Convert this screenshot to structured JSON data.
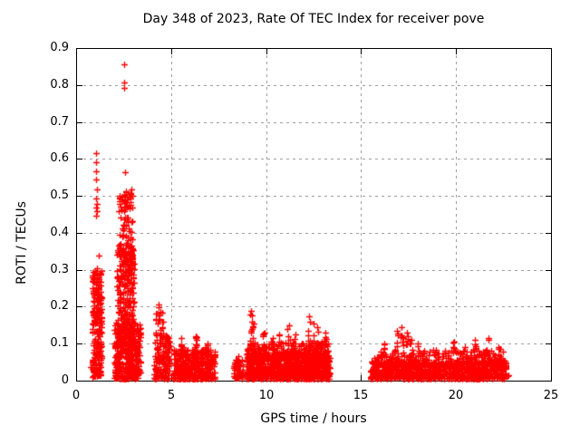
{
  "window": {
    "background": "#ffffff"
  },
  "chart_data": {
    "type": "scatter",
    "title": "Day 348 of 2023, Rate Of TEC Index for receiver pove",
    "xlabel": "GPS time / hours",
    "ylabel": "ROTI / TECUs",
    "xlim": [
      0,
      25
    ],
    "ylim": [
      0,
      0.9
    ],
    "x_ticks": [
      {
        "v": 0,
        "label": "0"
      },
      {
        "v": 5,
        "label": "5"
      },
      {
        "v": 10,
        "label": "10"
      },
      {
        "v": 15,
        "label": "15"
      },
      {
        "v": 20,
        "label": "20"
      },
      {
        "v": 25,
        "label": "25"
      }
    ],
    "y_ticks": [
      {
        "v": 0,
        "label": "0"
      },
      {
        "v": 0.1,
        "label": "0.1"
      },
      {
        "v": 0.2,
        "label": "0.2"
      },
      {
        "v": 0.3,
        "label": "0.3"
      },
      {
        "v": 0.4,
        "label": "0.4"
      },
      {
        "v": 0.5,
        "label": "0.5"
      },
      {
        "v": 0.6,
        "label": "0.6"
      },
      {
        "v": 0.7,
        "label": "0.7"
      },
      {
        "v": 0.8,
        "label": "0.8"
      },
      {
        "v": 0.9,
        "label": "0.9"
      }
    ],
    "grid": true,
    "grid_color": "#a0a0a0",
    "axis_color": "#000000",
    "legend": false,
    "marker": "plus",
    "marker_color": "#ff0000",
    "series_name": "ROTI",
    "clusters": [
      {
        "x0": 0.85,
        "x1": 1.35,
        "ymin": 0.01,
        "ymax": 0.3,
        "count": 260,
        "bias": 1.25
      },
      {
        "x0": 2.0,
        "x1": 3.4,
        "ymin": 0.005,
        "ymax": 0.16,
        "count": 380,
        "bias": 1.2
      },
      {
        "x0": 2.15,
        "x1": 3.05,
        "ymin": 0.1,
        "ymax": 0.36,
        "count": 250,
        "bias": 1.1
      },
      {
        "x0": 2.25,
        "x1": 2.98,
        "ymin": 0.3,
        "ymax": 0.52,
        "count": 120,
        "bias": 1.15
      },
      {
        "x0": 4.1,
        "x1": 4.95,
        "ymin": 0.005,
        "ymax": 0.13,
        "count": 150,
        "bias": 1.4
      },
      {
        "x0": 4.2,
        "x1": 4.65,
        "ymin": 0.12,
        "ymax": 0.2,
        "count": 18,
        "bias": 1.0
      },
      {
        "x0": 5.1,
        "x1": 7.3,
        "ymin": 0.005,
        "ymax": 0.085,
        "count": 430,
        "bias": 1.5
      },
      {
        "x0": 8.3,
        "x1": 8.8,
        "ymin": 0.005,
        "ymax": 0.058,
        "count": 60,
        "bias": 1.3
      },
      {
        "x0": 8.95,
        "x1": 10.1,
        "ymin": 0.005,
        "ymax": 0.075,
        "count": 260,
        "bias": 1.35
      },
      {
        "x0": 10.18,
        "x1": 11.9,
        "ymin": 0.005,
        "ymax": 0.075,
        "count": 380,
        "bias": 1.35
      },
      {
        "x0": 11.95,
        "x1": 13.35,
        "ymin": 0.005,
        "ymax": 0.075,
        "count": 310,
        "bias": 1.35
      },
      {
        "x0": 9.0,
        "x1": 13.3,
        "ymin": 0.055,
        "ymax": 0.105,
        "count": 260,
        "bias": 1.3
      },
      {
        "x0": 15.5,
        "x1": 17.8,
        "ymin": 0.005,
        "ymax": 0.055,
        "count": 330,
        "bias": 1.25
      },
      {
        "x0": 17.9,
        "x1": 19.5,
        "ymin": 0.005,
        "ymax": 0.05,
        "count": 220,
        "bias": 1.25
      },
      {
        "x0": 19.6,
        "x1": 22.65,
        "ymin": 0.005,
        "ymax": 0.055,
        "count": 400,
        "bias": 1.25
      },
      {
        "x0": 15.7,
        "x1": 22.5,
        "ymin": 0.04,
        "ymax": 0.085,
        "count": 230,
        "bias": 1.4
      }
    ],
    "spikes": [
      {
        "x": 5.55,
        "ytop": 0.115,
        "count": 16
      },
      {
        "x": 6.3,
        "ytop": 0.12,
        "count": 16
      },
      {
        "x": 6.9,
        "ytop": 0.1,
        "count": 12
      },
      {
        "x": 9.2,
        "ytop": 0.19,
        "count": 14
      },
      {
        "x": 9.35,
        "ytop": 0.155,
        "count": 10
      },
      {
        "x": 9.9,
        "ytop": 0.13,
        "count": 10
      },
      {
        "x": 10.35,
        "ytop": 0.115,
        "count": 8
      },
      {
        "x": 10.7,
        "ytop": 0.125,
        "count": 10
      },
      {
        "x": 11.2,
        "ytop": 0.15,
        "count": 10
      },
      {
        "x": 11.55,
        "ytop": 0.125,
        "count": 8
      },
      {
        "x": 12.25,
        "ytop": 0.175,
        "count": 12
      },
      {
        "x": 12.5,
        "ytop": 0.155,
        "count": 8
      },
      {
        "x": 12.7,
        "ytop": 0.145,
        "count": 8
      },
      {
        "x": 13.1,
        "ytop": 0.13,
        "count": 8
      },
      {
        "x": 16.2,
        "ytop": 0.1,
        "count": 8
      },
      {
        "x": 16.9,
        "ytop": 0.135,
        "count": 10
      },
      {
        "x": 17.15,
        "ytop": 0.145,
        "count": 10
      },
      {
        "x": 17.4,
        "ytop": 0.13,
        "count": 10
      },
      {
        "x": 17.65,
        "ytop": 0.11,
        "count": 8
      },
      {
        "x": 18.0,
        "ytop": 0.1,
        "count": 6
      },
      {
        "x": 19.9,
        "ytop": 0.105,
        "count": 8
      },
      {
        "x": 20.45,
        "ytop": 0.09,
        "count": 6
      },
      {
        "x": 21.0,
        "ytop": 0.11,
        "count": 8
      },
      {
        "x": 21.7,
        "ytop": 0.115,
        "count": 8
      },
      {
        "x": 22.25,
        "ytop": 0.09,
        "count": 6
      }
    ],
    "outliers": [
      [
        0.78,
        0.037
      ],
      [
        0.98,
        0.012
      ],
      [
        1.05,
        0.615
      ],
      [
        1.06,
        0.592
      ],
      [
        1.05,
        0.567
      ],
      [
        1.07,
        0.545
      ],
      [
        1.09,
        0.517
      ],
      [
        1.05,
        0.492
      ],
      [
        1.08,
        0.478
      ],
      [
        1.06,
        0.468
      ],
      [
        1.09,
        0.458
      ],
      [
        1.06,
        0.447
      ],
      [
        1.19,
        0.338
      ],
      [
        1.12,
        0.305
      ],
      [
        1.08,
        0.288
      ],
      [
        2.53,
        0.856
      ],
      [
        2.55,
        0.808
      ],
      [
        2.53,
        0.792
      ],
      [
        2.56,
        0.565
      ],
      [
        2.62,
        0.512
      ],
      [
        2.52,
        0.503
      ],
      [
        4.35,
        0.205
      ],
      [
        8.55,
        0.065
      ],
      [
        22.7,
        0.012
      ],
      [
        22.78,
        0.015
      ]
    ]
  }
}
